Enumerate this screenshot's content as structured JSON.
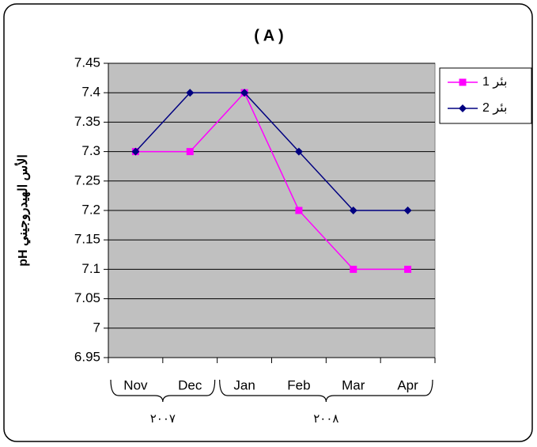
{
  "chart_data": {
    "type": "line",
    "title": "( A )",
    "y_label": "pH الأس الهيدروجيني",
    "category_groups": [
      {
        "label": "٢٠٠٧",
        "categories": [
          "Nov",
          "Dec"
        ]
      },
      {
        "label": "٢٠٠٨",
        "categories": [
          "Jan",
          "Feb",
          "Mar",
          "Apr"
        ]
      }
    ],
    "series": [
      {
        "name": "بئر 1",
        "color": "#ff00ff",
        "marker": "square",
        "values": [
          7.3,
          7.3,
          7.4,
          7.2,
          7.1,
          7.1
        ]
      },
      {
        "name": "بئر 2",
        "color": "#000080",
        "marker": "diamond",
        "values": [
          7.3,
          7.4,
          7.4,
          7.3,
          7.2,
          7.2
        ]
      }
    ],
    "ylim": [
      6.95,
      7.45
    ],
    "yticks": [
      6.95,
      7,
      7.05,
      7.1,
      7.15,
      7.2,
      7.25,
      7.3,
      7.35,
      7.4,
      7.45
    ],
    "grid": true,
    "plot_background": "#c0c0c0",
    "legend": "right"
  }
}
